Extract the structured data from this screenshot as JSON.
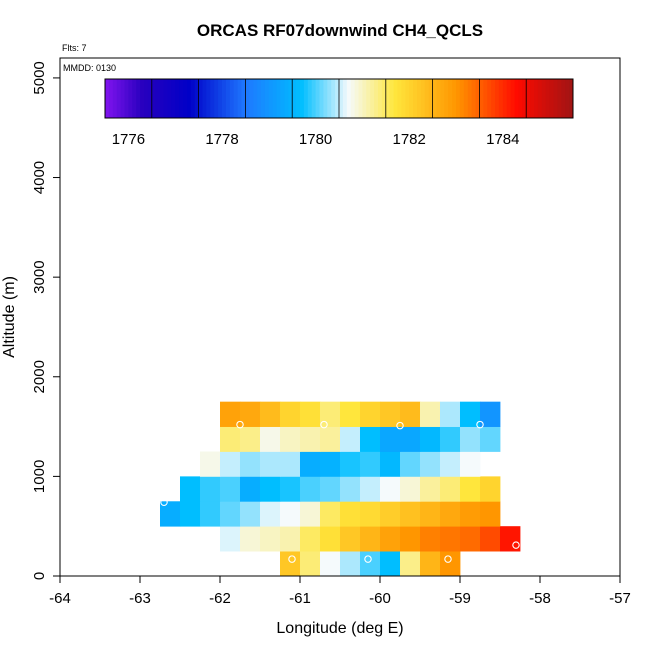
{
  "chart_data": {
    "type": "heatmap",
    "title": "ORCAS RF07downwind CH4_QCLS",
    "annotations": {
      "flts": "Flts: 7",
      "mmdd": "MMDD: 0130"
    },
    "xlabel": "Longitude (deg E)",
    "ylabel": "Altitude (m)",
    "xlim": [
      -64,
      -57
    ],
    "ylim": [
      0,
      5200
    ],
    "xticks": [
      -64,
      -63,
      -62,
      -61,
      -60,
      -59,
      -58,
      -57
    ],
    "yticks": [
      0,
      1000,
      2000,
      3000,
      4000,
      5000
    ],
    "colorbar": {
      "range": [
        1775.5,
        1785.5
      ],
      "ticks": [
        1776,
        1778,
        1780,
        1782,
        1784
      ],
      "major_ticks": [
        1775.5,
        1776.5,
        1777.5,
        1778.5,
        1779.5,
        1780.5,
        1781.5,
        1782.5,
        1783.5,
        1784.5,
        1785.5
      ]
    },
    "cell": {
      "dlon": 0.25,
      "dalt": 250
    },
    "rows": [
      {
        "alt_bottom": 0,
        "lon_start": -61.25,
        "values": [
          1782.2,
          1781.4,
          1780.7,
          1780.4,
          1780.0,
          1779.7,
          1781.3,
          1782.5,
          1783.0
        ]
      },
      {
        "alt_bottom": 250,
        "lon_start": -62.0,
        "values": [
          1780.6,
          1780.9,
          1781.0,
          1781.1,
          1781.5,
          1781.8,
          1782.2,
          1782.5,
          1782.8,
          1783.0,
          1783.2,
          1783.3,
          1783.4,
          1783.7,
          1784.2
        ]
      },
      {
        "alt_bottom": 500,
        "lon_start": -62.75,
        "values": [
          1779.4,
          1779.7,
          1779.9,
          1780.1,
          1780.3,
          1780.6,
          1780.7,
          1780.9,
          1781.5,
          1781.8,
          1781.9,
          1782.1,
          1782.3,
          1782.5,
          1782.7,
          1782.9,
          1783.0
        ]
      },
      {
        "alt_bottom": 750,
        "lon_start": -62.5,
        "values": [
          1779.7,
          1779.9,
          1780.0,
          1779.4,
          1779.7,
          1779.8,
          1780.0,
          1780.1,
          1780.3,
          1780.5,
          1780.7,
          1780.9,
          1781.2,
          1781.4,
          1781.7,
          1782.0
        ]
      },
      {
        "alt_bottom": 1000,
        "lon_start": -62.25,
        "values": [
          1780.8,
          1780.5,
          1780.3,
          1780.4,
          1780.4,
          1779.4,
          1779.5,
          1779.8,
          1779.9,
          1779.6,
          1780.1,
          1780.3,
          1780.5,
          1780.7
        ]
      },
      {
        "alt_bottom": 1250,
        "lon_start": -62.0,
        "values": [
          1781.4,
          1781.3,
          1780.8,
          1781.0,
          1781.1,
          1781.2,
          1780.5,
          1779.7,
          1779.3,
          1779.3,
          1779.6,
          1779.9,
          1780.3,
          1780.1
        ]
      },
      {
        "alt_bottom": 1500,
        "lon_start": -62.0,
        "values": [
          1782.8,
          1782.7,
          1782.4,
          1782.0,
          1781.8,
          1781.4,
          1781.7,
          1782.0,
          1782.2,
          1782.4,
          1781.1,
          1780.4,
          1779.7,
          1779.0
        ]
      }
    ],
    "sample_markers": [
      {
        "lon": -61.75,
        "alt": 1520
      },
      {
        "lon": -60.7,
        "alt": 1520
      },
      {
        "lon": -59.75,
        "alt": 1510
      },
      {
        "lon": -58.75,
        "alt": 1520
      },
      {
        "lon": -62.7,
        "alt": 740
      },
      {
        "lon": -58.3,
        "alt": 310
      },
      {
        "lon": -61.1,
        "alt": 170
      },
      {
        "lon": -60.15,
        "alt": 170
      },
      {
        "lon": -59.15,
        "alt": 170
      }
    ]
  }
}
